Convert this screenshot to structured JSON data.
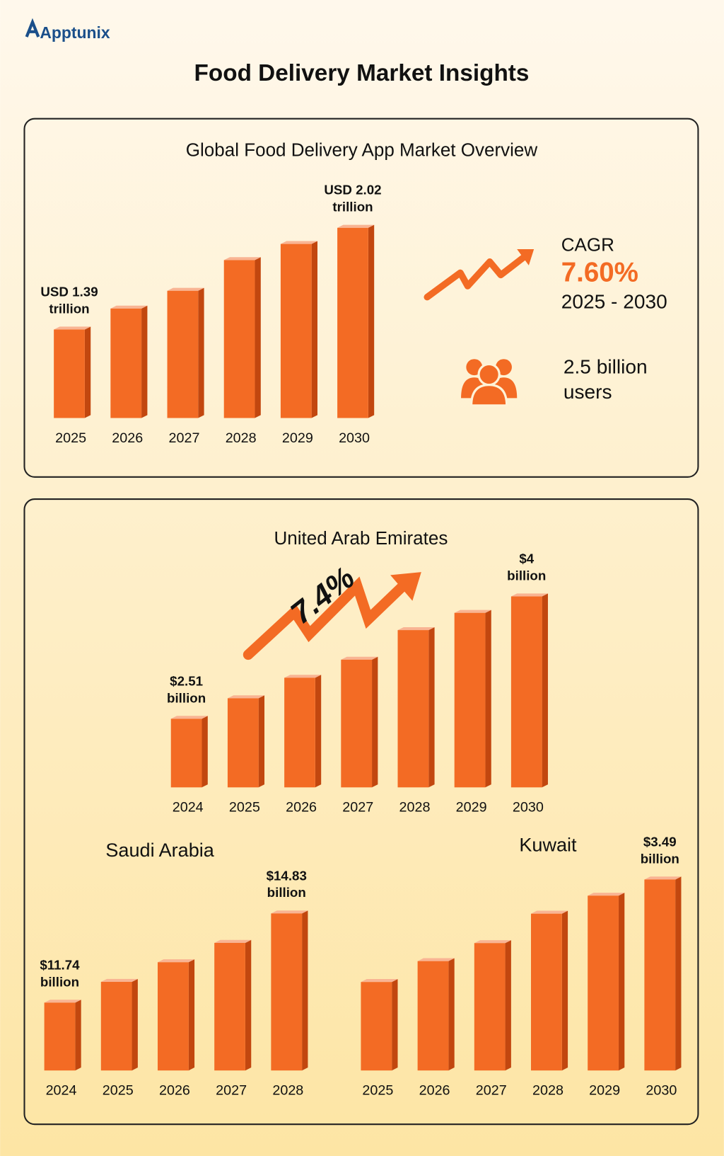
{
  "brand": "Apptunix",
  "title": "Food Delivery Market Insights",
  "stats": {
    "cagr_label": "CAGR",
    "cagr_value": "7.60%",
    "cagr_period": "2025 - 2030",
    "users": "2.5 billion users",
    "uae_growth": "7.4%"
  },
  "chart_data": [
    {
      "type": "bar",
      "title": "Global Food Delivery App Market Overview",
      "categories": [
        "2025",
        "2026",
        "2027",
        "2028",
        "2029",
        "2030"
      ],
      "values": [
        1.39,
        1.52,
        1.63,
        1.82,
        1.92,
        2.02
      ],
      "value_labels": [
        "USD 1.39 trillion",
        null,
        null,
        null,
        null,
        "USD 2.02 trillion"
      ],
      "color": "#f36b24"
    },
    {
      "type": "bar",
      "title": "United Arab Emirates",
      "categories": [
        "2024",
        "2025",
        "2026",
        "2027",
        "2028",
        "2029",
        "2030"
      ],
      "values": [
        2.51,
        2.76,
        3.01,
        3.23,
        3.59,
        3.8,
        4
      ],
      "value_labels": [
        "$2.51 billion",
        null,
        null,
        null,
        null,
        null,
        "$4 billion"
      ],
      "color": "#f36b24"
    },
    {
      "type": "bar",
      "title": "Saudi Arabia",
      "categories": [
        "2024",
        "2025",
        "2026",
        "2027",
        "2028"
      ],
      "values": [
        11.74,
        12.46,
        13.14,
        13.81,
        14.83
      ],
      "value_labels": [
        "$11.74 billion",
        null,
        null,
        null,
        "$14.83 billion"
      ],
      "color": "#f36b24"
    },
    {
      "type": "bar",
      "title": "Kuwait",
      "categories": [
        "2025",
        "2026",
        "2027",
        "2028",
        "2029",
        "2030"
      ],
      "values": [
        2.41,
        2.63,
        2.82,
        3.13,
        3.32,
        3.49
      ],
      "value_labels": [
        null,
        null,
        null,
        null,
        null,
        "$3.49 billion"
      ],
      "color": "#f36b24"
    }
  ]
}
